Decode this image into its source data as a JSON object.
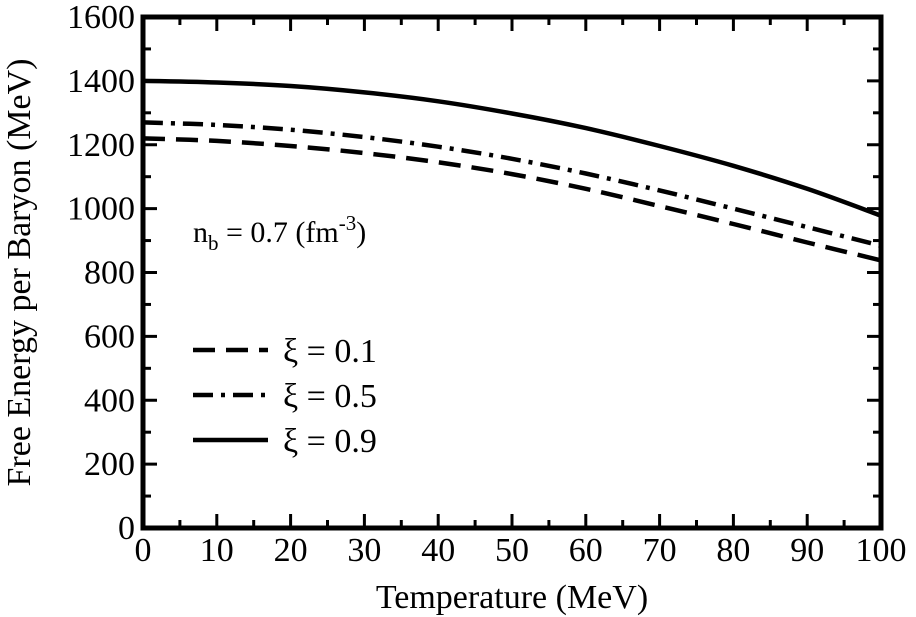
{
  "chart_data": {
    "type": "line",
    "xlabel": "Temperature (MeV)",
    "ylabel": "Free Energy per Baryon (MeV)",
    "xlim": [
      0,
      100
    ],
    "ylim": [
      0,
      1600
    ],
    "xticks": [
      0,
      10,
      20,
      30,
      40,
      50,
      60,
      70,
      80,
      90,
      100
    ],
    "xtick_labels": [
      "0",
      "10",
      "20",
      "30",
      "40",
      "50",
      "60",
      "70",
      "80",
      "90",
      "100"
    ],
    "yticks": [
      0,
      200,
      400,
      600,
      800,
      1000,
      1200,
      1400,
      1600
    ],
    "ytick_labels": [
      "0",
      "200",
      "400",
      "600",
      "800",
      "1000",
      "1200",
      "1400",
      "1600"
    ],
    "grid": false,
    "legend_position": "lower-left",
    "annotation": {
      "base": "n",
      "sub": "b",
      "mid": " = 0.7 (fm",
      "sup": "-3",
      "end": ")"
    },
    "x": [
      0,
      10,
      20,
      30,
      40,
      50,
      60,
      70,
      80,
      90,
      100
    ],
    "series": [
      {
        "name": "ξ = 0.1",
        "style": "dashed",
        "color": "#000000",
        "values": [
          1220,
          1212,
          1196,
          1174,
          1145,
          1108,
          1062,
          1008,
          952,
          894,
          838
        ]
      },
      {
        "name": "ξ = 0.5",
        "style": "dash-dot",
        "color": "#000000",
        "values": [
          1270,
          1262,
          1247,
          1224,
          1194,
          1156,
          1110,
          1057,
          1000,
          942,
          884
        ]
      },
      {
        "name": "ξ = 0.9",
        "style": "solid",
        "color": "#000000",
        "values": [
          1400,
          1395,
          1384,
          1364,
          1336,
          1298,
          1252,
          1196,
          1134,
          1062,
          978
        ]
      }
    ]
  }
}
